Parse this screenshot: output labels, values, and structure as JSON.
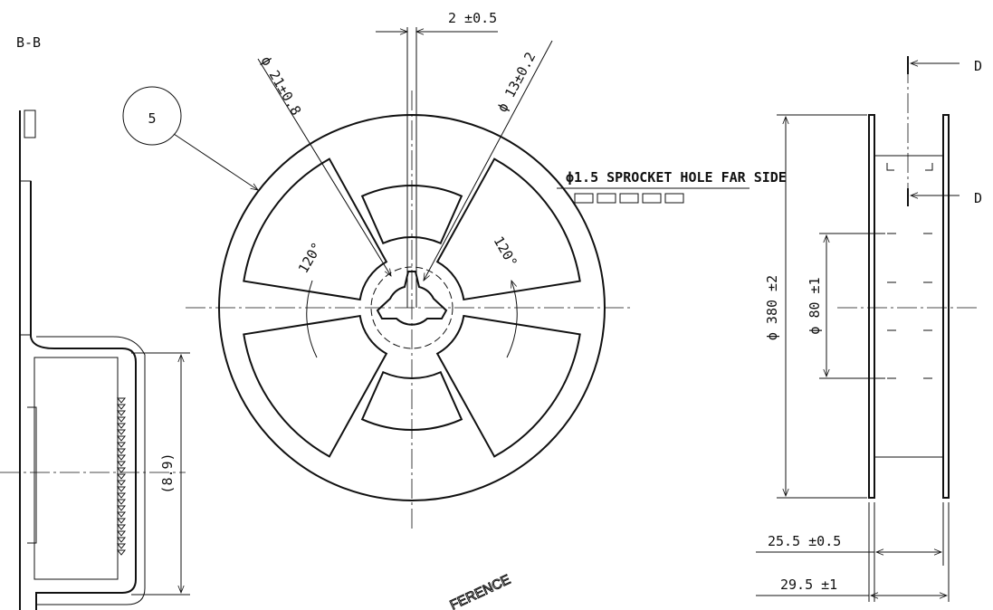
{
  "section_label": "B-B",
  "callout": "5",
  "dimensions": {
    "slot_width": "2 ±0.5",
    "hub_diameter": "ϕ 21±0.8",
    "arbor_hole": "ϕ 13±0.2",
    "angle_left": "120°",
    "angle_right": "120°",
    "sprocket_note": "ϕ1.5 SPROCKET HOLE FAR SIDE",
    "tape_height": "(8.9)",
    "reel_diameter": "ϕ 380 ±2",
    "hub_outer": "ϕ 80 ±1",
    "inner_width": "25.5 ±0.5",
    "outer_width": "29.5 ±1"
  },
  "section_marks": [
    "D",
    "D"
  ],
  "watermark": "FERENCE"
}
